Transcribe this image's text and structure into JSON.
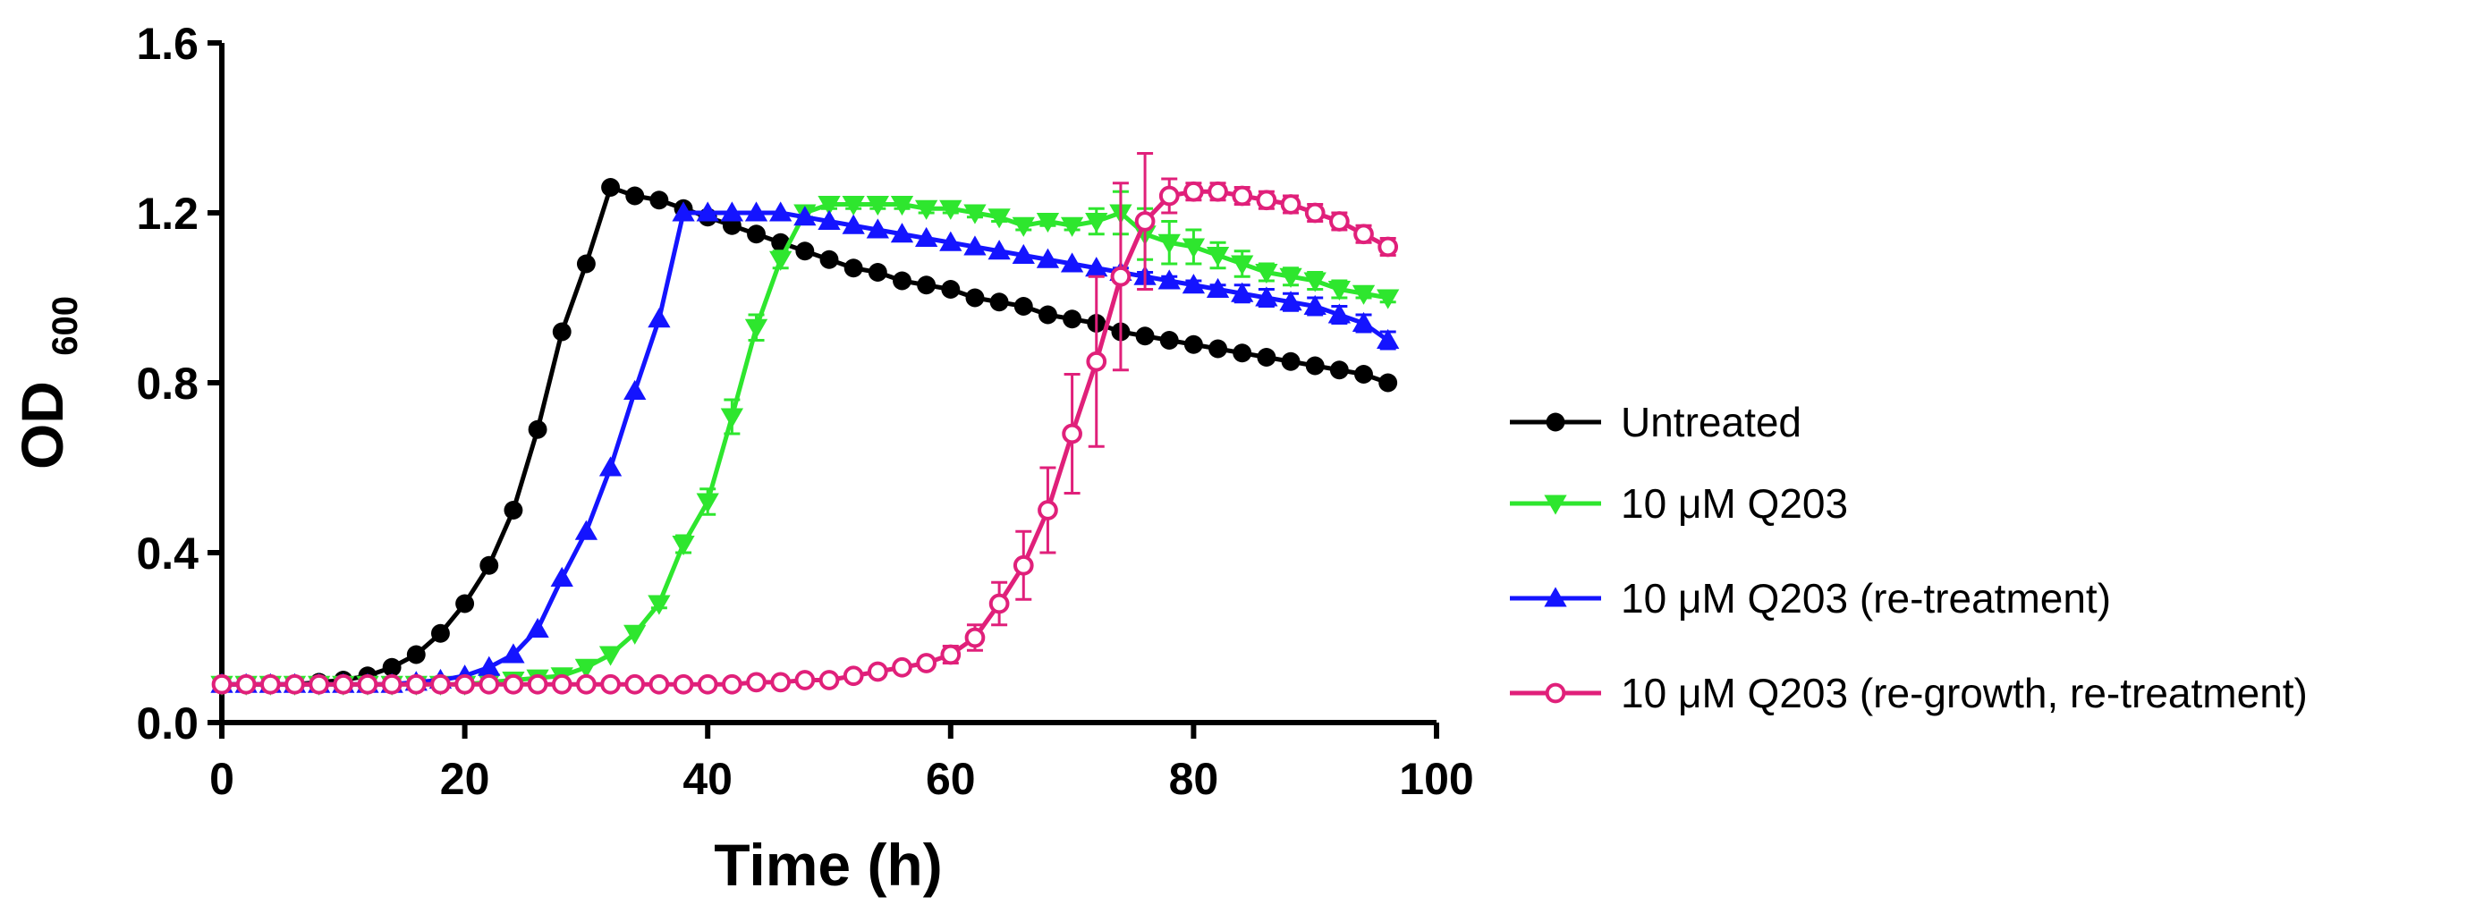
{
  "chart_data": {
    "type": "line",
    "title": "",
    "xlabel": "Time (h)",
    "ylabel_main": "OD",
    "ylabel_sub": "600",
    "xlim": [
      0,
      100
    ],
    "ylim": [
      0,
      1.6
    ],
    "xticks": [
      "0",
      "20",
      "40",
      "60",
      "80",
      "100"
    ],
    "yticks": [
      "0.0",
      "0.4",
      "0.8",
      "1.2",
      "1.6"
    ],
    "grid": false,
    "legend_position": "right",
    "series": [
      {
        "name": "Untreated",
        "color": "#000000",
        "marker": "circle-filled",
        "x": [
          0,
          2,
          4,
          6,
          8,
          10,
          12,
          14,
          16,
          18,
          20,
          22,
          24,
          26,
          28,
          30,
          32,
          34,
          36,
          38,
          40,
          42,
          44,
          46,
          48,
          50,
          52,
          54,
          56,
          58,
          60,
          62,
          64,
          66,
          68,
          70,
          72,
          74,
          76,
          78,
          80,
          82,
          84,
          86,
          88,
          90,
          92,
          94,
          96
        ],
        "y": [
          0.09,
          0.09,
          0.09,
          0.09,
          0.095,
          0.1,
          0.11,
          0.13,
          0.16,
          0.21,
          0.28,
          0.37,
          0.5,
          0.69,
          0.92,
          1.08,
          1.26,
          1.24,
          1.23,
          1.21,
          1.19,
          1.17,
          1.15,
          1.13,
          1.11,
          1.09,
          1.07,
          1.06,
          1.04,
          1.03,
          1.02,
          1.0,
          0.99,
          0.98,
          0.96,
          0.95,
          0.94,
          0.92,
          0.91,
          0.9,
          0.89,
          0.88,
          0.87,
          0.86,
          0.85,
          0.84,
          0.83,
          0.82,
          0.8
        ],
        "err": []
      },
      {
        "name": "10 μM Q203",
        "color": "#2ee62e",
        "marker": "triangle-down-filled",
        "x": [
          0,
          2,
          4,
          6,
          8,
          10,
          12,
          14,
          16,
          18,
          20,
          22,
          24,
          26,
          28,
          30,
          32,
          34,
          36,
          38,
          40,
          42,
          44,
          46,
          48,
          50,
          52,
          54,
          56,
          58,
          60,
          62,
          64,
          66,
          68,
          70,
          72,
          74,
          76,
          78,
          80,
          82,
          84,
          86,
          88,
          90,
          92,
          94,
          96
        ],
        "y": [
          0.09,
          0.09,
          0.09,
          0.09,
          0.09,
          0.09,
          0.09,
          0.09,
          0.09,
          0.09,
          0.09,
          0.095,
          0.1,
          0.105,
          0.11,
          0.13,
          0.16,
          0.21,
          0.28,
          0.42,
          0.52,
          0.72,
          0.93,
          1.09,
          1.2,
          1.22,
          1.22,
          1.22,
          1.22,
          1.21,
          1.21,
          1.2,
          1.19,
          1.17,
          1.18,
          1.17,
          1.18,
          1.2,
          1.15,
          1.13,
          1.12,
          1.1,
          1.08,
          1.06,
          1.05,
          1.04,
          1.02,
          1.01,
          1.0
        ],
        "err": [
          0,
          0,
          0,
          0,
          0,
          0,
          0,
          0,
          0,
          0,
          0,
          0,
          0,
          0,
          0,
          0,
          0,
          0,
          0.01,
          0.02,
          0.03,
          0.04,
          0.03,
          0.02,
          0.01,
          0.01,
          0.01,
          0.01,
          0.01,
          0.01,
          0.01,
          0.01,
          0.01,
          0.01,
          0.01,
          0.01,
          0.03,
          0.05,
          0.06,
          0.05,
          0.04,
          0.03,
          0.03,
          0.02,
          0.02,
          0.02,
          0.02,
          0.01,
          0.01
        ]
      },
      {
        "name": "10 μM Q203 (re-treatment)",
        "color": "#1414ff",
        "marker": "triangle-up-filled",
        "x": [
          0,
          2,
          4,
          6,
          8,
          10,
          12,
          14,
          16,
          18,
          20,
          22,
          24,
          26,
          28,
          30,
          32,
          34,
          36,
          38,
          40,
          42,
          44,
          46,
          48,
          50,
          52,
          54,
          56,
          58,
          60,
          62,
          64,
          66,
          68,
          70,
          72,
          74,
          76,
          78,
          80,
          82,
          84,
          86,
          88,
          90,
          92,
          94,
          96
        ],
        "y": [
          0.09,
          0.09,
          0.09,
          0.09,
          0.09,
          0.09,
          0.09,
          0.09,
          0.095,
          0.1,
          0.11,
          0.13,
          0.16,
          0.22,
          0.34,
          0.45,
          0.6,
          0.78,
          0.95,
          1.2,
          1.2,
          1.2,
          1.2,
          1.2,
          1.19,
          1.18,
          1.17,
          1.16,
          1.15,
          1.14,
          1.13,
          1.12,
          1.11,
          1.1,
          1.09,
          1.08,
          1.07,
          1.06,
          1.05,
          1.04,
          1.03,
          1.02,
          1.01,
          1.0,
          0.99,
          0.98,
          0.96,
          0.94,
          0.9
        ],
        "err": [
          0,
          0,
          0,
          0,
          0,
          0,
          0,
          0,
          0,
          0,
          0,
          0,
          0,
          0,
          0,
          0,
          0,
          0,
          0,
          0,
          0,
          0,
          0,
          0,
          0,
          0,
          0,
          0,
          0,
          0,
          0,
          0,
          0,
          0,
          0,
          0,
          0,
          0.01,
          0.01,
          0.01,
          0.01,
          0.01,
          0.02,
          0.02,
          0.02,
          0.02,
          0.02,
          0.02,
          0.02
        ]
      },
      {
        "name": "10 μM Q203 (re-growth, re-treatment)",
        "color": "#e0207a",
        "marker": "circle-open",
        "x": [
          0,
          2,
          4,
          6,
          8,
          10,
          12,
          14,
          16,
          18,
          20,
          22,
          24,
          26,
          28,
          30,
          32,
          34,
          36,
          38,
          40,
          42,
          44,
          46,
          48,
          50,
          52,
          54,
          56,
          58,
          60,
          62,
          64,
          66,
          68,
          70,
          72,
          74,
          76,
          78,
          80,
          82,
          84,
          86,
          88,
          90,
          92,
          94,
          96
        ],
        "y": [
          0.09,
          0.09,
          0.09,
          0.09,
          0.09,
          0.09,
          0.09,
          0.09,
          0.09,
          0.09,
          0.09,
          0.09,
          0.09,
          0.09,
          0.09,
          0.09,
          0.09,
          0.09,
          0.09,
          0.09,
          0.09,
          0.09,
          0.095,
          0.095,
          0.1,
          0.1,
          0.11,
          0.12,
          0.13,
          0.14,
          0.16,
          0.2,
          0.28,
          0.37,
          0.5,
          0.68,
          0.85,
          1.05,
          1.18,
          1.24,
          1.25,
          1.25,
          1.24,
          1.23,
          1.22,
          1.2,
          1.18,
          1.15,
          1.12
        ],
        "err": [
          0,
          0,
          0,
          0,
          0,
          0,
          0,
          0,
          0,
          0,
          0,
          0,
          0,
          0,
          0,
          0,
          0,
          0,
          0,
          0,
          0,
          0,
          0,
          0,
          0,
          0,
          0,
          0,
          0,
          0,
          0.02,
          0.03,
          0.05,
          0.08,
          0.1,
          0.14,
          0.2,
          0.22,
          0.16,
          0.04,
          0.02,
          0.02,
          0.02,
          0.02,
          0.02,
          0.02,
          0.02,
          0.02,
          0.02
        ]
      }
    ]
  }
}
